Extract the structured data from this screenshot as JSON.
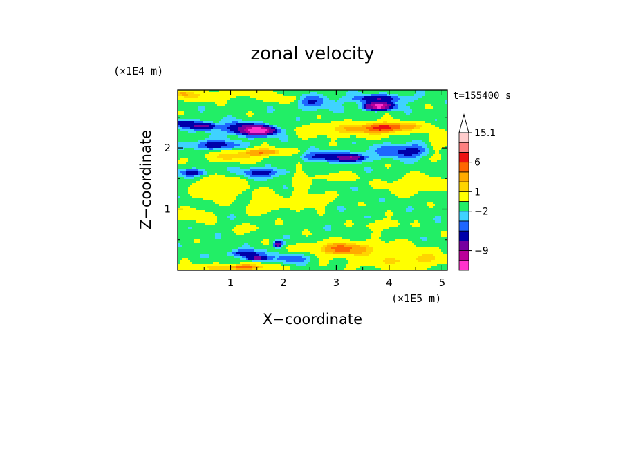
{
  "chart_data": {
    "type": "contour",
    "title": "zonal velocity",
    "xlabel": "X−coordinate",
    "ylabel": "Z−coordinate",
    "x_multiplier": "(×1E5 m)",
    "y_multiplier": "(×1E4 m)",
    "time_label": "t=155400 s",
    "xlim": [
      0,
      5.1
    ],
    "ylim": [
      0,
      2.95
    ],
    "x_ticks": [
      1,
      2,
      3,
      4,
      5
    ],
    "y_ticks": [
      1,
      2
    ],
    "colorbar": {
      "colors": [
        "#ff33cc",
        "#bb0099",
        "#7700a0",
        "#0000aa",
        "#1e66ff",
        "#3fd2ff",
        "#22ee66",
        "#ffff00",
        "#ffd400",
        "#ffaa00",
        "#ff6600",
        "#ee1111",
        "#ff8080",
        "#ffcccc"
      ],
      "boundaries": [
        -13,
        -11,
        -9,
        -6,
        -4,
        -3,
        -2,
        -1,
        1,
        2,
        4,
        6,
        9,
        12,
        15.1
      ],
      "labels": [
        {
          "text": "15.1",
          "value": 15.1
        },
        {
          "text": "6",
          "value": 6
        },
        {
          "text": "1",
          "value": 1
        },
        {
          "text": "−2",
          "value": -2
        },
        {
          "text": "−9",
          "value": -9
        }
      ]
    },
    "field": {
      "background_level": -1.5,
      "features": [
        {
          "x": 0.1,
          "z": 2.4,
          "sx": 0.32,
          "sz": 0.07,
          "amp": -3.2
        },
        {
          "x": 0.5,
          "z": 2.35,
          "sx": 0.22,
          "sz": 0.06,
          "amp": -5.5
        },
        {
          "x": 1.2,
          "z": 2.32,
          "sx": 0.35,
          "sz": 0.1,
          "amp": -4
        },
        {
          "x": 1.55,
          "z": 2.28,
          "sx": 0.3,
          "sz": 0.07,
          "amp": -11
        },
        {
          "x": 0.7,
          "z": 2.05,
          "sx": 0.45,
          "sz": 0.08,
          "amp": -3.4
        },
        {
          "x": 1.0,
          "z": 1.85,
          "sx": 0.5,
          "sz": 0.08,
          "amp": 3
        },
        {
          "x": 1.6,
          "z": 1.93,
          "sx": 0.4,
          "sz": 0.06,
          "amp": 5.5
        },
        {
          "x": 0.3,
          "z": 1.6,
          "sx": 0.28,
          "sz": 0.06,
          "amp": -3.2
        },
        {
          "x": 1.6,
          "z": 1.6,
          "sx": 0.4,
          "sz": 0.08,
          "amp": -3.2
        },
        {
          "x": 0.8,
          "z": 1.35,
          "sx": 0.45,
          "sz": 0.18,
          "amp": 2.2
        },
        {
          "x": 1.7,
          "z": 1.1,
          "sx": 0.3,
          "sz": 0.15,
          "amp": 2.2
        },
        {
          "x": 0.3,
          "z": 0.9,
          "sx": 0.3,
          "sz": 0.1,
          "amp": 2.2
        },
        {
          "x": 1.35,
          "z": 0.7,
          "sx": 0.2,
          "sz": 0.06,
          "amp": 2.2
        },
        {
          "x": 1.3,
          "z": 0.28,
          "sx": 0.35,
          "sz": 0.05,
          "amp": -3.5
        },
        {
          "x": 1.5,
          "z": 0.2,
          "sx": 0.2,
          "sz": 0.04,
          "amp": -6
        },
        {
          "x": 1.9,
          "z": 0.42,
          "sx": 0.08,
          "sz": 0.05,
          "amp": -7
        },
        {
          "x": 1.0,
          "z": 0.04,
          "sx": 0.9,
          "sz": 0.06,
          "amp": 2.8
        },
        {
          "x": 1.25,
          "z": 0.05,
          "sx": 0.25,
          "sz": 0.04,
          "amp": 4.5
        },
        {
          "x": 0.3,
          "z": 2.85,
          "sx": 0.6,
          "sz": 0.08,
          "amp": 2.2
        },
        {
          "x": 1.3,
          "z": 2.9,
          "sx": 0.5,
          "sz": 0.06,
          "amp": 2.2
        },
        {
          "x": 2.0,
          "z": 2.8,
          "sx": 0.3,
          "sz": 0.06,
          "amp": 2.2
        },
        {
          "x": 3.8,
          "z": 2.8,
          "sx": 0.5,
          "sz": 0.07,
          "amp": -4
        },
        {
          "x": 3.8,
          "z": 2.68,
          "sx": 0.25,
          "sz": 0.05,
          "amp": -11
        },
        {
          "x": 3.3,
          "z": 2.3,
          "sx": 0.8,
          "sz": 0.1,
          "amp": 3.2
        },
        {
          "x": 3.9,
          "z": 2.33,
          "sx": 0.35,
          "sz": 0.08,
          "amp": 7
        },
        {
          "x": 4.4,
          "z": 2.35,
          "sx": 0.4,
          "sz": 0.07,
          "amp": 2.5
        },
        {
          "x": 2.9,
          "z": 1.85,
          "sx": 0.6,
          "sz": 0.08,
          "amp": -3.5
        },
        {
          "x": 3.3,
          "z": 1.83,
          "sx": 0.2,
          "sz": 0.05,
          "amp": -6
        },
        {
          "x": 4.4,
          "z": 1.95,
          "sx": 0.6,
          "sz": 0.12,
          "amp": -3.2
        },
        {
          "x": 3.0,
          "z": 1.52,
          "sx": 0.35,
          "sz": 0.06,
          "amp": 2.3
        },
        {
          "x": 4.5,
          "z": 1.4,
          "sx": 0.5,
          "sz": 0.13,
          "amp": 2.3
        },
        {
          "x": 2.6,
          "z": 1.15,
          "sx": 0.25,
          "sz": 0.1,
          "amp": 2.2
        },
        {
          "x": 3.9,
          "z": 0.75,
          "sx": 0.3,
          "sz": 0.06,
          "amp": 2.2
        },
        {
          "x": 3.3,
          "z": 0.35,
          "sx": 0.9,
          "sz": 0.12,
          "amp": 2.6
        },
        {
          "x": 3.1,
          "z": 0.35,
          "sx": 0.35,
          "sz": 0.08,
          "amp": 4
        },
        {
          "x": 4.0,
          "z": 0.15,
          "sx": 0.7,
          "sz": 0.12,
          "amp": 2.2
        },
        {
          "x": 4.7,
          "z": 0.2,
          "sx": 0.35,
          "sz": 0.12,
          "amp": 2.2
        },
        {
          "x": 2.2,
          "z": 0.2,
          "sx": 0.3,
          "sz": 0.08,
          "amp": -2.8
        },
        {
          "x": 2.3,
          "z": 1.4,
          "sx": 0.12,
          "sz": 0.4,
          "amp": 2.2
        },
        {
          "x": 2.55,
          "z": 2.75,
          "sx": 0.35,
          "sz": 0.12,
          "amp": -2.2
        },
        {
          "x": 4.9,
          "z": 2.0,
          "sx": 0.25,
          "sz": 0.2,
          "amp": 2.2
        },
        {
          "x": 0.05,
          "z": 2.9,
          "sx": 0.2,
          "sz": 0.06,
          "amp": 2.5
        }
      ]
    }
  }
}
